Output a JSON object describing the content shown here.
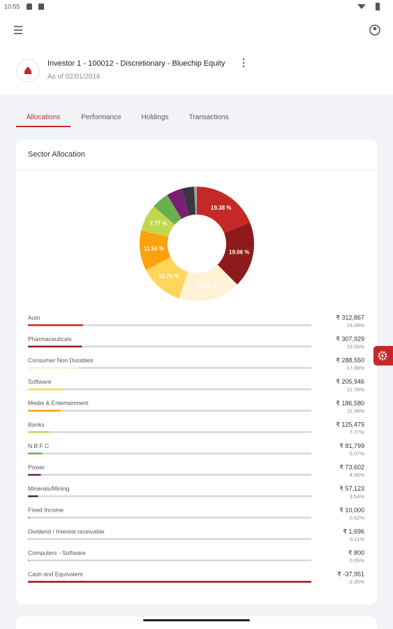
{
  "status_bar": {
    "time": "10:55"
  },
  "header": {
    "title": "Investor 1 - 100012 - Discretionary - Bluechip Equity",
    "subtitle": "As of 02/01/2016"
  },
  "tabs": [
    "Allocations",
    "Performance",
    "Holdings",
    "Transactions"
  ],
  "sector": {
    "title": "Sector Allocation",
    "donut_labels": [
      "19.38 %",
      "19.06 %",
      "17.88 %",
      "12.76 %",
      "11.56 %",
      "7.77 %"
    ],
    "items": [
      {
        "name": "Auto",
        "amount": "₹ 312,867",
        "percent": {
          "value": 19.38,
          "label": "19.38%"
        },
        "color": "#c62828"
      },
      {
        "name": "Pharmaceuticals",
        "amount": "₹ 307,929",
        "percent": {
          "value": 19.06,
          "label": "19.06%"
        },
        "color": "#8e1b1b"
      },
      {
        "name": "Consumer Non Durables",
        "amount": "₹ 288,550",
        "percent": {
          "value": 17.88,
          "label": "17.88%"
        },
        "color": "#fff1d4"
      },
      {
        "name": "Software",
        "amount": "₹ 205,946",
        "percent": {
          "value": 12.76,
          "label": "12.76%"
        },
        "color": "#ffd55a"
      },
      {
        "name": "Media & Entertainment",
        "amount": "₹ 186,580",
        "percent": {
          "value": 11.56,
          "label": "11.56%"
        },
        "color": "#ffa10a"
      },
      {
        "name": "Banks",
        "amount": "₹ 125,479",
        "percent": {
          "value": 7.77,
          "label": "7.77%"
        },
        "color": "#c1d84c"
      },
      {
        "name": "N B F C",
        "amount": "₹ 81,799",
        "percent": {
          "value": 5.07,
          "label": "5.07%"
        },
        "color": "#6bb04f"
      },
      {
        "name": "Power",
        "amount": "₹ 73,602",
        "percent": {
          "value": 4.56,
          "label": "4.56%"
        },
        "color": "#7b1f72"
      },
      {
        "name": "Minerals/Mining",
        "amount": "₹ 57,123",
        "percent": {
          "value": 3.54,
          "label": "3.54%"
        },
        "color": "#37373d"
      },
      {
        "name": "Fixed Income",
        "amount": "₹ 10,000",
        "percent": {
          "value": 0.62,
          "label": "0.62%"
        },
        "color": "#9e9e9e"
      },
      {
        "name": "Dividend / Interest receivable",
        "amount": "₹ 1,696",
        "percent": {
          "value": 0.11,
          "label": "0.11%"
        },
        "color": "#9e9e9e"
      },
      {
        "name": "Computers - Software",
        "amount": "₹ 800",
        "percent": {
          "value": 0.05,
          "label": "0.05%"
        },
        "color": "#9e9e9e"
      },
      {
        "name": "Cash and Equivalent",
        "amount": "₹ -37,951",
        "percent": {
          "value": -2.35,
          "label": "-2.35%"
        },
        "color": "#a31515"
      }
    ]
  }
}
